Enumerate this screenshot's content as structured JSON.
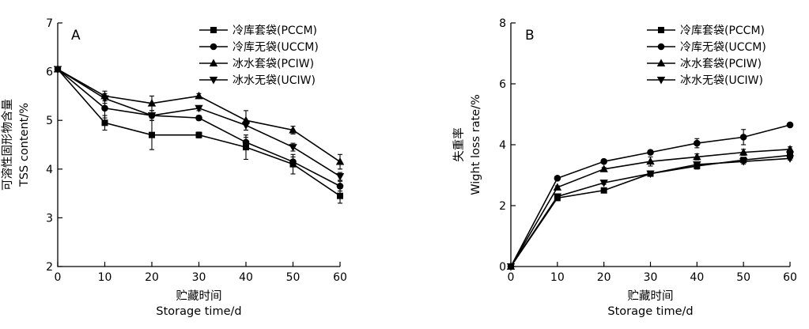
{
  "chart_data": [
    {
      "type": "line",
      "panel": "A",
      "xlabel_lines": [
        "贮藏时间",
        "Storage time/d"
      ],
      "ylabel_lines": [
        "可溶性固形物含量",
        "TSS content/%"
      ],
      "x": [
        0,
        10,
        20,
        30,
        40,
        50,
        60
      ],
      "xlim": [
        0,
        60
      ],
      "xticks": [
        0,
        10,
        20,
        30,
        40,
        50,
        60
      ],
      "ylim": [
        2,
        7
      ],
      "yticks": [
        2,
        3,
        4,
        5,
        6,
        7
      ],
      "grid": false,
      "legend_position": "top-right",
      "series": [
        {
          "name": "冷库套袋(PCCM)",
          "marker": "square",
          "values": [
            6.05,
            4.95,
            4.7,
            4.7,
            4.45,
            4.1,
            3.45
          ],
          "errors": [
            0,
            0.15,
            0.3,
            0.06,
            0.25,
            0.2,
            0.15
          ]
        },
        {
          "name": "冷库无袋(UCCM)",
          "marker": "circle",
          "values": [
            6.05,
            5.25,
            5.1,
            5.05,
            4.55,
            4.15,
            3.65
          ],
          "errors": [
            0,
            0.2,
            0.05,
            0.05,
            0.1,
            0.1,
            0.1
          ]
        },
        {
          "name": "冰水套袋(PCIW)",
          "marker": "triangle",
          "values": [
            6.05,
            5.5,
            5.35,
            5.5,
            5.0,
            4.8,
            4.15
          ],
          "errors": [
            0,
            0.1,
            0.15,
            0.05,
            0.2,
            0.08,
            0.15
          ]
        },
        {
          "name": "冰水无袋(UCIW)",
          "marker": "tri-down",
          "values": [
            6.05,
            5.45,
            5.1,
            5.25,
            4.9,
            4.45,
            3.85
          ],
          "errors": [
            0,
            0.1,
            0.1,
            0.05,
            0.1,
            0.08,
            0.08
          ]
        }
      ]
    },
    {
      "type": "line",
      "panel": "B",
      "xlabel_lines": [
        "贮藏时间",
        "Storage time/d"
      ],
      "ylabel_lines": [
        "失重率",
        "Wight loss rate/%"
      ],
      "x": [
        0,
        10,
        20,
        30,
        40,
        50,
        60
      ],
      "xlim": [
        0,
        60
      ],
      "xticks": [
        0,
        10,
        20,
        30,
        40,
        50,
        60
      ],
      "ylim": [
        0,
        8
      ],
      "yticks": [
        0,
        2,
        4,
        6,
        8
      ],
      "grid": false,
      "legend_position": "top-right",
      "series": [
        {
          "name": "冷库套袋(PCCM)",
          "marker": "square",
          "values": [
            0,
            2.25,
            2.5,
            3.05,
            3.3,
            3.5,
            3.65
          ],
          "errors": [
            0,
            0.05,
            0.05,
            0.05,
            0.1,
            0.08,
            0.05
          ]
        },
        {
          "name": "冷库无袋(UCCM)",
          "marker": "circle",
          "values": [
            0,
            2.9,
            3.45,
            3.75,
            4.05,
            4.25,
            4.65
          ],
          "errors": [
            0,
            0.05,
            0.05,
            0.05,
            0.15,
            0.25,
            0.05
          ]
        },
        {
          "name": "冰水套袋(PCIW)",
          "marker": "triangle",
          "values": [
            0,
            2.6,
            3.2,
            3.45,
            3.6,
            3.75,
            3.85
          ],
          "errors": [
            0,
            0.05,
            0.05,
            0.15,
            0.1,
            0.1,
            0.08
          ]
        },
        {
          "name": "冰水无袋(UCIW)",
          "marker": "tri-down",
          "values": [
            0,
            2.3,
            2.75,
            3.05,
            3.35,
            3.45,
            3.55
          ],
          "errors": [
            0,
            0.05,
            0.05,
            0.05,
            0.05,
            0.08,
            0.05
          ]
        }
      ]
    }
  ]
}
